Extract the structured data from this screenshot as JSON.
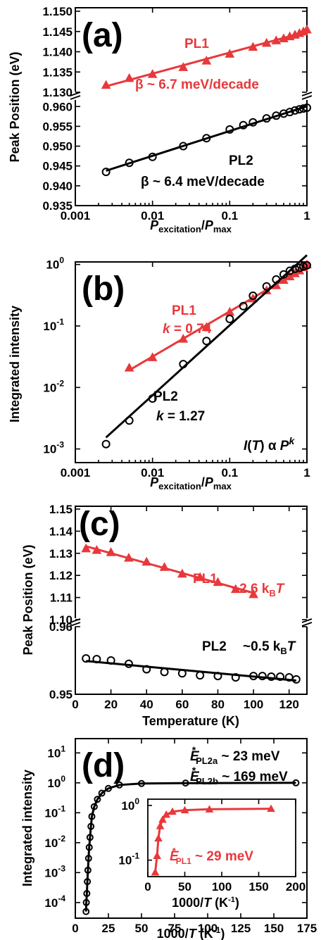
{
  "chart_data": [
    {
      "panel": "(a)",
      "type": "scatter",
      "ylabel": "Peak Position (eV)",
      "xlabel": "Pexcitation/Pmax",
      "xscale": "log",
      "xlim": [
        0.001,
        1
      ],
      "broken_y_axis": true,
      "ylim_upper": [
        1.13,
        1.15
      ],
      "ylim_lower": [
        0.935,
        0.962
      ],
      "yticks_upper": [
        "1.130",
        "1.135",
        "1.140",
        "1.145",
        "1.150"
      ],
      "yticks_lower": [
        "0.935",
        "0.940",
        "0.945",
        "0.950",
        "0.955",
        "0.960"
      ],
      "xticks": [
        "0.001",
        "0.01",
        "0.1",
        "1"
      ],
      "series": [
        {
          "name": "PL1",
          "marker": "triangle",
          "color": "#e8383b",
          "x": [
            0.0025,
            0.005,
            0.01,
            0.025,
            0.05,
            0.1,
            0.2,
            0.3,
            0.4,
            0.5,
            0.6,
            0.7,
            0.8,
            0.9,
            1.0
          ],
          "y": [
            1.1318,
            1.1335,
            1.1345,
            1.1362,
            1.1378,
            1.1395,
            1.1412,
            1.1422,
            1.1428,
            1.1433,
            1.1438,
            1.1442,
            1.1446,
            1.145,
            1.1455
          ]
        },
        {
          "name": "PL2",
          "marker": "circle",
          "color": "#000000",
          "x": [
            0.0025,
            0.005,
            0.01,
            0.025,
            0.05,
            0.1,
            0.15,
            0.2,
            0.3,
            0.4,
            0.5,
            0.6,
            0.7,
            0.8,
            0.9,
            1.0
          ],
          "y": [
            0.9435,
            0.9458,
            0.9473,
            0.95,
            0.952,
            0.9542,
            0.9553,
            0.956,
            0.957,
            0.9577,
            0.9582,
            0.9586,
            0.959,
            0.9593,
            0.9595,
            0.9597
          ]
        }
      ],
      "annotations": [
        {
          "label": "PL1",
          "color": "#e8383b"
        },
        {
          "label": "β ~ 6.7 meV/decade",
          "color": "#e8383b"
        },
        {
          "label": "PL2",
          "color": "#000000"
        },
        {
          "label": "β ~ 6.4 meV/decade",
          "color": "#000000"
        }
      ]
    },
    {
      "panel": "(b)",
      "type": "scatter",
      "ylabel": "Integrated intensity",
      "xlabel": "Pexcitation/Pmax",
      "xscale": "log",
      "yscale": "log",
      "xlim": [
        0.001,
        1
      ],
      "ylim": [
        0.0006,
        1.1
      ],
      "xticks": [
        "0.001",
        "0.01",
        "0.1",
        "1"
      ],
      "series": [
        {
          "name": "PL1",
          "marker": "triangle",
          "color": "#e8383b",
          "x": [
            0.005,
            0.01,
            0.025,
            0.05,
            0.1,
            0.2,
            0.3,
            0.4,
            0.5,
            0.6,
            0.7,
            0.8,
            0.9,
            1.0
          ],
          "y": [
            0.021,
            0.031,
            0.062,
            0.096,
            0.17,
            0.28,
            0.38,
            0.46,
            0.56,
            0.64,
            0.72,
            0.8,
            0.9,
            1.0
          ]
        },
        {
          "name": "PL2",
          "marker": "circle",
          "color": "#000000",
          "x": [
            0.0025,
            0.005,
            0.01,
            0.025,
            0.05,
            0.1,
            0.15,
            0.2,
            0.3,
            0.4,
            0.5,
            0.6,
            0.7,
            0.8,
            0.9,
            1.0
          ],
          "y": [
            0.0012,
            0.0029,
            0.0066,
            0.024,
            0.057,
            0.13,
            0.21,
            0.31,
            0.44,
            0.57,
            0.69,
            0.79,
            0.85,
            0.88,
            0.93,
            0.97
          ]
        }
      ],
      "annotations": [
        {
          "label": "PL1",
          "color": "#e8383b"
        },
        {
          "label": "k = 0.74",
          "color": "#e8383b"
        },
        {
          "label": "PL2",
          "color": "#000000"
        },
        {
          "label": "k = 1.27",
          "color": "#000000"
        },
        {
          "label": "I(T) α Pk",
          "color": "#000000"
        }
      ]
    },
    {
      "panel": "(c)",
      "type": "scatter",
      "ylabel": "Peak Position (eV)",
      "xlabel": "Temperature (K)",
      "xlim": [
        0,
        130
      ],
      "broken_y_axis": true,
      "ylim_upper": [
        1.1,
        1.15
      ],
      "ylim_lower": [
        0.95,
        0.96
      ],
      "yticks_upper": [
        "1.10",
        "1.11",
        "1.12",
        "1.13",
        "1.14",
        "1.15"
      ],
      "yticks_lower": [
        "0.95",
        "0.96"
      ],
      "xticks": [
        "0",
        "20",
        "40",
        "60",
        "80",
        "100",
        "120"
      ],
      "series": [
        {
          "name": "PL1",
          "marker": "triangle",
          "color": "#e8383b",
          "x": [
            6,
            12,
            20,
            30,
            40,
            50,
            60,
            70,
            80,
            90,
            100
          ],
          "y": [
            1.1322,
            1.1315,
            1.1305,
            1.128,
            1.1262,
            1.1238,
            1.1208,
            1.1192,
            1.117,
            1.1138,
            1.1115
          ]
        },
        {
          "name": "PL2",
          "marker": "circle",
          "color": "#000000",
          "x": [
            6,
            12,
            20,
            30,
            40,
            50,
            60,
            70,
            80,
            90,
            100,
            105,
            110,
            115,
            120,
            124
          ],
          "y": [
            0.9553,
            0.9552,
            0.955,
            0.9545,
            0.9537,
            0.9533,
            0.9531,
            0.9528,
            0.9527,
            0.9525,
            0.9527,
            0.9527,
            0.9526,
            0.9526,
            0.9525,
            0.9522
          ]
        }
      ],
      "annotations": [
        {
          "label": "PL1",
          "color": "#e8383b"
        },
        {
          "label": "~2.6 kBT",
          "color": "#e8383b"
        },
        {
          "label": "PL2",
          "color": "#000000"
        },
        {
          "label": "~0.5 kBT",
          "color": "#000000"
        }
      ]
    },
    {
      "panel": "(d)",
      "type": "scatter",
      "ylabel": "Integrated intensity",
      "xlabel": "1000/T (K-1)",
      "xlim": [
        0,
        175
      ],
      "yscale": "log",
      "ylim": [
        3e-05,
        30
      ],
      "xticks": [
        "0",
        "25",
        "50",
        "75",
        "100",
        "125",
        "150",
        "175"
      ],
      "series": [
        {
          "name": "PL2",
          "marker": "circle",
          "color": "#000000",
          "x": [
            8.1,
            8.3,
            8.7,
            9.1,
            9.5,
            10,
            10.5,
            11.1,
            11.8,
            12.5,
            14.3,
            16.7,
            20,
            25,
            33.3,
            50,
            83.3,
            166.7
          ],
          "y": [
            5e-05,
            0.0001,
            0.0002,
            0.0005,
            0.0012,
            0.003,
            0.007,
            0.015,
            0.035,
            0.075,
            0.16,
            0.28,
            0.45,
            0.65,
            0.85,
            0.95,
            0.98,
            1.0
          ]
        }
      ],
      "annotations": [
        {
          "label": "E*PL2a ~ 23 meV",
          "color": "#000000"
        },
        {
          "label": "E*PL2b ~ 169 meV",
          "color": "#000000"
        }
      ],
      "inset": {
        "type": "scatter",
        "xlabel": "1000/T (K-1)",
        "xlim": [
          0,
          200
        ],
        "yscale": "log",
        "ylim": [
          0.05,
          1.3
        ],
        "xticks": [
          "0",
          "50",
          "100",
          "150",
          "200"
        ],
        "series": [
          {
            "name": "PL1",
            "marker": "triangle",
            "color": "#e8383b",
            "x": [
              10,
              12.5,
              14.3,
              16.7,
              20,
              25,
              33.3,
              50,
              83.3,
              166.7
            ],
            "y": [
              0.06,
              0.12,
              0.25,
              0.42,
              0.55,
              0.68,
              0.77,
              0.82,
              0.85,
              0.87
            ]
          }
        ],
        "annotations": [
          {
            "label": "E*PL1 ~ 29 meV",
            "color": "#e8383b"
          }
        ]
      }
    }
  ]
}
